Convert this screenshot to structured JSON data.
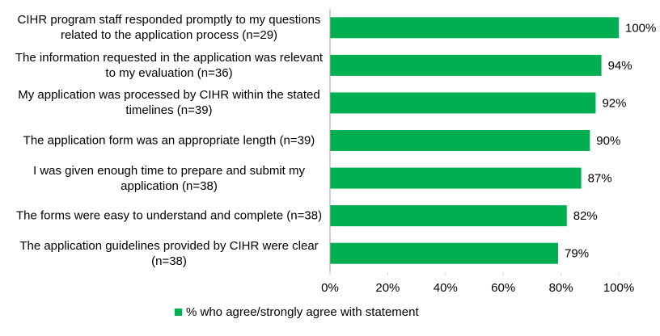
{
  "chart_data": {
    "type": "hbar",
    "categories": [
      "CIHR program staff responded promptly to my questions related to the application process (n=29)",
      "The information requested in the application was relevant to my evaluation (n=36)",
      "My application was processed by CIHR within the stated timelines (n=39)",
      "The application form was an appropriate length (n=39)",
      "I was given enough time to prepare and submit my application (n=38)",
      "The forms were easy to understand and complete (n=38)",
      "The application guidelines provided by CIHR were clear (n=38)"
    ],
    "series": [
      {
        "name": "% who agree/strongly agree with statement",
        "color": "#00b050",
        "values": [
          100,
          94,
          92,
          90,
          87,
          82,
          79
        ],
        "value_labels": [
          "100%",
          "94%",
          "92%",
          "90%",
          "87%",
          "82%",
          "79%"
        ]
      }
    ],
    "xlim": [
      0,
      100
    ],
    "xticks": [
      {
        "value": 0,
        "label": "0%"
      },
      {
        "value": 20,
        "label": "20%"
      },
      {
        "value": 40,
        "label": "40%"
      },
      {
        "value": 60,
        "label": "60%"
      },
      {
        "value": 80,
        "label": "80%"
      },
      {
        "value": 100,
        "label": "100%"
      }
    ],
    "legend": "bottom"
  }
}
